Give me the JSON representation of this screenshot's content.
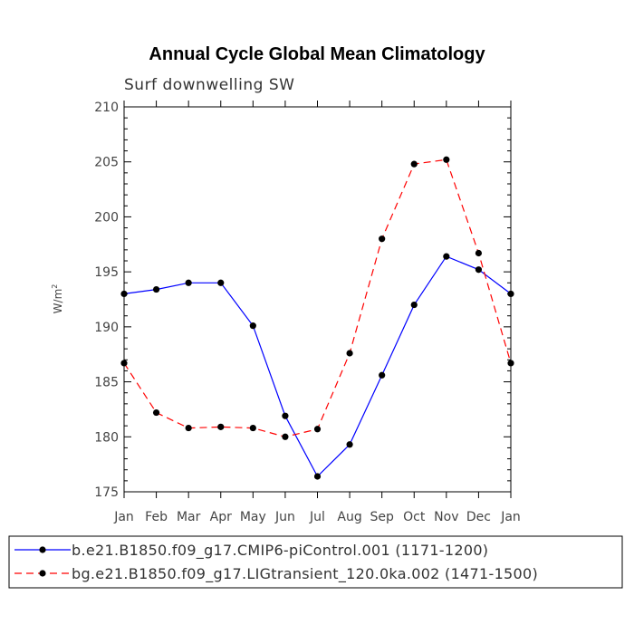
{
  "chart_data": {
    "type": "line",
    "title": "Annual Cycle Global Mean Climatology",
    "subtitle": "Surf downwelling SW",
    "ylabel": "W/m",
    "ylabel_superscript": "2",
    "xlabel": "",
    "ylim": [
      175,
      210
    ],
    "yticks": [
      175,
      180,
      185,
      190,
      195,
      200,
      205,
      210
    ],
    "categories": [
      "Jan",
      "Feb",
      "Mar",
      "Apr",
      "May",
      "Jun",
      "Jul",
      "Aug",
      "Sep",
      "Oct",
      "Nov",
      "Dec",
      "Jan"
    ],
    "grid": false,
    "legend_position": "bottom",
    "series": [
      {
        "name": "b.e21.B1850.f09_g17.CMIP6-piControl.001 (1171-1200)",
        "color": "#0000ff",
        "dash": "solid",
        "values": [
          193.0,
          193.4,
          194.0,
          194.0,
          190.1,
          181.9,
          176.4,
          179.3,
          185.6,
          192.0,
          196.4,
          195.2,
          193.0
        ]
      },
      {
        "name": "bg.e21.B1850.f09_g17.LIGtransient_120.0ka.002 (1471-1500)",
        "color": "#ff0000",
        "dash": "dashed",
        "values": [
          186.7,
          182.2,
          180.8,
          180.9,
          180.8,
          180.0,
          180.7,
          187.6,
          198.0,
          204.8,
          205.2,
          196.7,
          186.7
        ]
      }
    ]
  }
}
